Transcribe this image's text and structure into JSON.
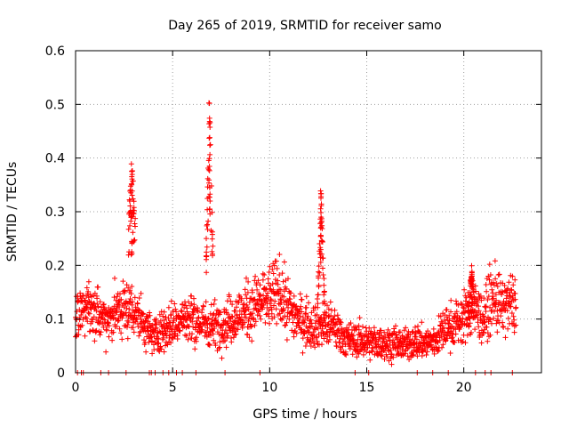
{
  "chart_data": {
    "type": "scatter",
    "title": "Day 265 of 2019, SRMTID for receiver samo",
    "xlabel": "GPS time / hours",
    "ylabel": "SRMTID / TECUs",
    "xlim": [
      0,
      24
    ],
    "ylim": [
      0,
      0.6
    ],
    "grid": true,
    "marker": "+",
    "marker_color": "#ff0000",
    "x_ticks": [
      0,
      5,
      10,
      15,
      20
    ],
    "x_tick_labels": [
      "0",
      "5",
      "10",
      "15",
      "20"
    ],
    "y_ticks": [
      0,
      0.1,
      0.2,
      0.3,
      0.4,
      0.5,
      0.6
    ],
    "y_tick_labels": [
      "0",
      "0.1",
      "0.2",
      "0.3",
      "0.4",
      "0.5",
      "0.6"
    ],
    "background_level": [
      [
        0.0,
        0.11
      ],
      [
        0.5,
        0.12
      ],
      [
        1.0,
        0.11
      ],
      [
        1.5,
        0.1
      ],
      [
        2.0,
        0.11
      ],
      [
        2.5,
        0.12
      ],
      [
        3.0,
        0.12
      ],
      [
        3.5,
        0.09
      ],
      [
        4.0,
        0.07
      ],
      [
        4.5,
        0.08
      ],
      [
        5.0,
        0.09
      ],
      [
        5.5,
        0.1
      ],
      [
        6.0,
        0.1
      ],
      [
        6.5,
        0.09
      ],
      [
        7.0,
        0.09
      ],
      [
        7.5,
        0.09
      ],
      [
        8.0,
        0.1
      ],
      [
        8.5,
        0.11
      ],
      [
        9.0,
        0.12
      ],
      [
        9.5,
        0.13
      ],
      [
        10.0,
        0.14
      ],
      [
        10.5,
        0.15
      ],
      [
        11.0,
        0.12
      ],
      [
        11.5,
        0.1
      ],
      [
        12.0,
        0.09
      ],
      [
        12.5,
        0.09
      ],
      [
        13.0,
        0.09
      ],
      [
        13.5,
        0.08
      ],
      [
        14.0,
        0.06
      ],
      [
        14.5,
        0.06
      ],
      [
        15.0,
        0.06
      ],
      [
        15.5,
        0.055
      ],
      [
        16.0,
        0.055
      ],
      [
        16.5,
        0.055
      ],
      [
        17.0,
        0.05
      ],
      [
        17.5,
        0.06
      ],
      [
        18.0,
        0.055
      ],
      [
        18.5,
        0.06
      ],
      [
        19.0,
        0.08
      ],
      [
        19.5,
        0.09
      ],
      [
        20.0,
        0.1
      ],
      [
        20.5,
        0.12
      ],
      [
        21.0,
        0.1
      ],
      [
        21.5,
        0.14
      ],
      [
        22.0,
        0.12
      ],
      [
        22.5,
        0.13
      ],
      [
        22.7,
        0.13
      ]
    ],
    "spikes": [
      {
        "x": [
          2.2,
          3.1
        ],
        "peak": 0.4,
        "center": 2.9
      },
      {
        "x": [
          6.6,
          7.1
        ],
        "peak": 0.51,
        "center": 6.9
      },
      {
        "x": [
          12.5,
          12.9
        ],
        "peak": 0.34,
        "center": 12.65
      },
      {
        "x": [
          20.2,
          20.5
        ],
        "peak": 0.2,
        "center": 20.4
      }
    ],
    "zero_points_x": [
      0.1,
      0.3,
      0.4,
      1.3,
      1.7,
      2.6,
      3.8,
      3.9,
      4.1,
      4.5,
      4.8,
      5.2,
      5.5,
      6.2,
      7.7,
      9.5,
      14.4,
      15.1,
      17.6,
      18.4,
      19.2,
      20.6,
      21.1,
      21.4,
      22.5
    ],
    "data_x_range": [
      0,
      22.7
    ]
  }
}
